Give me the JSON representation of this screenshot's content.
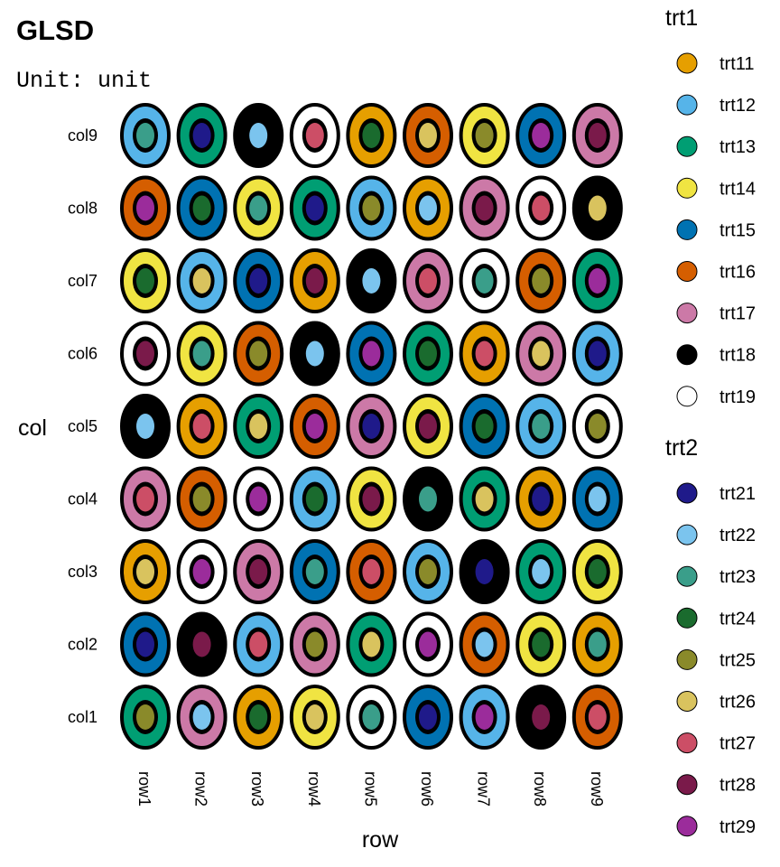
{
  "chart_data": {
    "type": "heatmap",
    "title": "GLSD",
    "subtitle": "Unit: unit",
    "xlabel": "row",
    "ylabel": "col",
    "x_categories": [
      "row1",
      "row2",
      "row3",
      "row4",
      "row5",
      "row6",
      "row7",
      "row8",
      "row9"
    ],
    "y_categories": [
      "col1",
      "col2",
      "col3",
      "col4",
      "col5",
      "col6",
      "col7",
      "col8",
      "col9"
    ],
    "legend_position": "right",
    "factors": [
      {
        "name": "trt1",
        "levels": [
          "trt11",
          "trt12",
          "trt13",
          "trt14",
          "trt15",
          "trt16",
          "trt17",
          "trt18",
          "trt19"
        ],
        "colors": [
          "#E69F00",
          "#56B4E9",
          "#009E73",
          "#F0E442",
          "#0072B2",
          "#D55E00",
          "#CC79A7",
          "#000000",
          "#FFFFFF"
        ]
      },
      {
        "name": "trt2",
        "levels": [
          "trt21",
          "trt22",
          "trt23",
          "trt24",
          "trt25",
          "trt26",
          "trt27",
          "trt28",
          "trt29"
        ],
        "colors": [
          "#1F1A8A",
          "#7BC4EE",
          "#3A9E8A",
          "#1A6B2E",
          "#8A8A2A",
          "#D9C35E",
          "#CC4E66",
          "#7A1A4A",
          "#9B2C9B"
        ]
      }
    ],
    "rows_top_to_bottom": [
      {
        "col": "col9",
        "trt1": [
          "trt12",
          "trt13",
          "trt18",
          "trt19",
          "trt11",
          "trt16",
          "trt14",
          "trt15",
          "trt17"
        ],
        "trt2": [
          "trt23",
          "trt21",
          "trt22",
          "trt27",
          "trt24",
          "trt26",
          "trt25",
          "trt29",
          "trt28"
        ]
      },
      {
        "col": "col8",
        "trt1": [
          "trt16",
          "trt15",
          "trt14",
          "trt13",
          "trt12",
          "trt11",
          "trt17",
          "trt19",
          "trt18"
        ],
        "trt2": [
          "trt29",
          "trt24",
          "trt23",
          "trt21",
          "trt25",
          "trt22",
          "trt28",
          "trt27",
          "trt26"
        ]
      },
      {
        "col": "col7",
        "trt1": [
          "trt14",
          "trt12",
          "trt15",
          "trt11",
          "trt18",
          "trt17",
          "trt19",
          "trt16",
          "trt13"
        ],
        "trt2": [
          "trt24",
          "trt26",
          "trt21",
          "trt28",
          "trt22",
          "trt27",
          "trt23",
          "trt25",
          "trt29"
        ]
      },
      {
        "col": "col6",
        "trt1": [
          "trt19",
          "trt14",
          "trt16",
          "trt18",
          "trt15",
          "trt13",
          "trt11",
          "trt17",
          "trt12"
        ],
        "trt2": [
          "trt28",
          "trt23",
          "trt25",
          "trt22",
          "trt29",
          "trt24",
          "trt27",
          "trt26",
          "trt21"
        ]
      },
      {
        "col": "col5",
        "trt1": [
          "trt18",
          "trt11",
          "trt13",
          "trt16",
          "trt17",
          "trt14",
          "trt15",
          "trt12",
          "trt19"
        ],
        "trt2": [
          "trt22",
          "trt27",
          "trt26",
          "trt29",
          "trt21",
          "trt28",
          "trt24",
          "trt23",
          "trt25"
        ]
      },
      {
        "col": "col4",
        "trt1": [
          "trt17",
          "trt16",
          "trt19",
          "trt12",
          "trt14",
          "trt18",
          "trt13",
          "trt11",
          "trt15"
        ],
        "trt2": [
          "trt27",
          "trt25",
          "trt29",
          "trt24",
          "trt28",
          "trt23",
          "trt26",
          "trt21",
          "trt22"
        ]
      },
      {
        "col": "col3",
        "trt1": [
          "trt11",
          "trt19",
          "trt17",
          "trt15",
          "trt16",
          "trt12",
          "trt18",
          "trt13",
          "trt14"
        ],
        "trt2": [
          "trt26",
          "trt29",
          "trt28",
          "trt23",
          "trt27",
          "trt25",
          "trt21",
          "trt22",
          "trt24"
        ]
      },
      {
        "col": "col2",
        "trt1": [
          "trt15",
          "trt18",
          "trt12",
          "trt17",
          "trt13",
          "trt19",
          "trt16",
          "trt14",
          "trt11"
        ],
        "trt2": [
          "trt21",
          "trt28",
          "trt27",
          "trt25",
          "trt26",
          "trt29",
          "trt22",
          "trt24",
          "trt23"
        ]
      },
      {
        "col": "col1",
        "trt1": [
          "trt13",
          "trt17",
          "trt11",
          "trt14",
          "trt19",
          "trt15",
          "trt12",
          "trt18",
          "trt16"
        ],
        "trt2": [
          "trt25",
          "trt22",
          "trt24",
          "trt26",
          "trt23",
          "trt21",
          "trt29",
          "trt28",
          "trt27"
        ]
      }
    ]
  }
}
